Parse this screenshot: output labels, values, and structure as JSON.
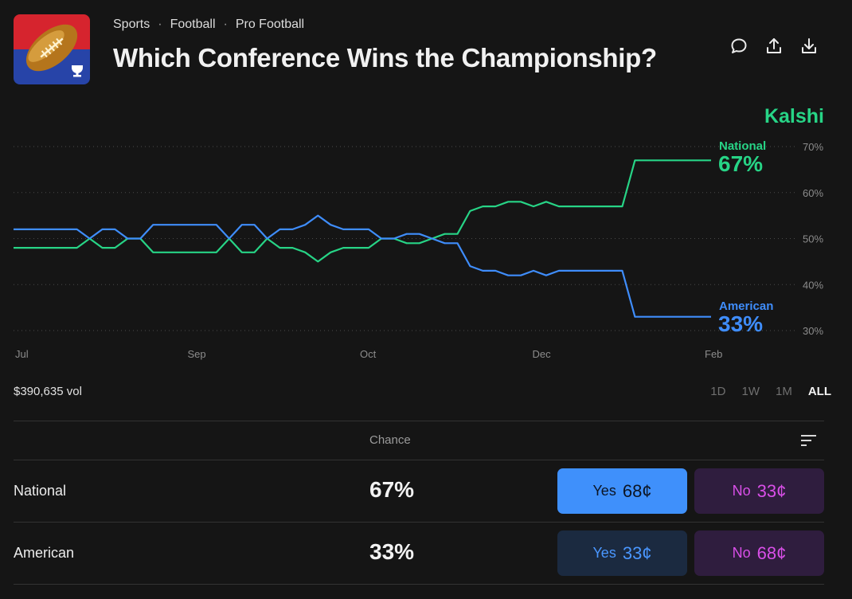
{
  "breadcrumb": [
    "Sports",
    "Football",
    "Pro Football"
  ],
  "title": "Which Conference Wins the Championship?",
  "header_icons": [
    "comment-icon",
    "share-icon",
    "download-icon"
  ],
  "brand": "Kalshi",
  "colors": {
    "national": "#27d486",
    "american": "#3f8dfb",
    "no": "#d94fe8",
    "background": "#151515"
  },
  "volume": "$390,635 vol",
  "ranges": [
    "1D",
    "1W",
    "1M",
    "ALL"
  ],
  "active_range": "ALL",
  "legend": {
    "national": {
      "name": "National",
      "value": "67%"
    },
    "american": {
      "name": "American",
      "value": "33%"
    }
  },
  "chart_data": {
    "type": "line",
    "x_labels": [
      "Jul",
      "Sep",
      "Oct",
      "Dec",
      "Feb"
    ],
    "y_ticks": [
      "70%",
      "60%",
      "50%",
      "40%",
      "30%"
    ],
    "ylim": [
      30,
      70
    ],
    "grid": true,
    "series": [
      {
        "name": "National",
        "values": [
          48,
          48,
          48,
          48,
          48,
          48,
          50,
          48,
          48,
          50,
          50,
          47,
          47,
          47,
          47,
          47,
          47,
          50,
          47,
          47,
          50,
          48,
          48,
          47,
          45,
          47,
          48,
          48,
          48,
          50,
          50,
          49,
          49,
          50,
          51,
          51,
          56,
          57,
          57,
          58,
          58,
          57,
          58,
          57,
          57,
          57,
          57,
          57,
          57,
          67,
          67,
          67,
          67,
          67,
          67,
          67
        ]
      },
      {
        "name": "American",
        "values": [
          52,
          52,
          52,
          52,
          52,
          52,
          50,
          52,
          52,
          50,
          50,
          53,
          53,
          53,
          53,
          53,
          53,
          50,
          53,
          53,
          50,
          52,
          52,
          53,
          55,
          53,
          52,
          52,
          52,
          50,
          50,
          51,
          51,
          50,
          49,
          49,
          44,
          43,
          43,
          42,
          42,
          43,
          42,
          43,
          43,
          43,
          43,
          43,
          43,
          33,
          33,
          33,
          33,
          33,
          33,
          33
        ]
      }
    ]
  },
  "table": {
    "header": "Chance",
    "rows": [
      {
        "name": "National",
        "chance": "67%",
        "yes_label": "Yes",
        "yes_price": "68¢",
        "no_label": "No",
        "no_price": "33¢"
      },
      {
        "name": "American",
        "chance": "33%",
        "yes_label": "Yes",
        "yes_price": "33¢",
        "no_label": "No",
        "no_price": "68¢"
      }
    ]
  }
}
